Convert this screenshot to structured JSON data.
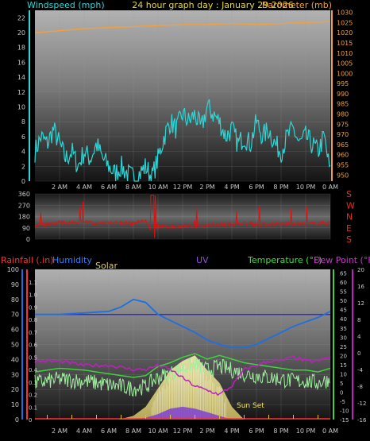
{
  "header": {
    "left": "Windspeed (mph)",
    "center": "24 hour graph day : January 29 2026",
    "right": "Barometer (mb)"
  },
  "colors": {
    "wind": "#2ed6d6",
    "baro": "#f0a040",
    "dir": "#e01010",
    "humidity": "#1f6fe0",
    "temp": "#9ef09e",
    "temp_line": "#40d040",
    "dew": "#c020c0",
    "solar": "#e8e090",
    "uv": "#8040d0",
    "rain": "#ff3030",
    "hline": "#3030c0",
    "axis_text": "#c8c8c8",
    "dir_labels": "#e03020"
  },
  "bottom_headers": {
    "rain": "Rainfall (.in)",
    "humidity": "Humidity",
    "solar": "Solar",
    "uv": "UV",
    "temp": "Temperature (°F)",
    "dew": "Dew Point (°F)"
  },
  "annotation": "Sun Set",
  "x_ticks": [
    "2 AM",
    "4 AM",
    "6 AM",
    "8 AM",
    "10 AM",
    "12 PM",
    "2 PM",
    "4 PM",
    "6 PM",
    "8 PM",
    "10 PM",
    "0 AM"
  ],
  "chart_data": [
    {
      "type": "line",
      "title": "24 hour graph day : January 29 2026",
      "x_hours_range": [
        0,
        24
      ],
      "series": [
        {
          "name": "Windspeed (mph)",
          "axis": "left",
          "ylim": [
            0,
            23
          ],
          "ticks": [
            0,
            2,
            4,
            6,
            8,
            10,
            12,
            14,
            16,
            18,
            20,
            22
          ],
          "x": [
            0,
            0.5,
            1,
            1.5,
            2,
            2.5,
            3,
            3.5,
            4,
            4.5,
            5,
            5.5,
            6,
            6.5,
            7,
            7.5,
            8,
            8.5,
            9,
            9.5,
            10,
            10.5,
            11,
            11.5,
            12,
            12.5,
            13,
            13.5,
            14,
            14.5,
            15,
            15.5,
            16,
            16.5,
            17,
            17.5,
            18,
            18.5,
            19,
            19.5,
            20,
            20.5,
            21,
            21.5,
            22,
            22.5,
            23,
            23.5,
            24
          ],
          "values": [
            4,
            6,
            5,
            7,
            5,
            3,
            4,
            2,
            4,
            3,
            5,
            3,
            2,
            1,
            2,
            1,
            0.5,
            1,
            2,
            0.5,
            3,
            6,
            8,
            7,
            9,
            8,
            9,
            7,
            10,
            9,
            8,
            6,
            7,
            5,
            6,
            5,
            8,
            6,
            7,
            5,
            4,
            6,
            7,
            5,
            6,
            5,
            4,
            6,
            1
          ]
        },
        {
          "name": "Barometer (mb)",
          "axis": "right",
          "ylim": [
            947,
            1031
          ],
          "ticks": [
            950,
            955,
            960,
            965,
            970,
            975,
            980,
            985,
            990,
            995,
            1000,
            1005,
            1010,
            1015,
            1020,
            1025,
            1030
          ],
          "x": [
            0,
            2,
            4,
            6,
            8,
            10,
            12,
            14,
            16,
            18,
            20,
            22,
            24
          ],
          "values": [
            1020,
            1021,
            1022,
            1022.5,
            1023,
            1023.5,
            1024,
            1024,
            1024.5,
            1024,
            1024.5,
            1025,
            1025.5
          ]
        }
      ]
    },
    {
      "type": "line",
      "title": "",
      "series": [
        {
          "name": "",
          "ylim": [
            0,
            360
          ],
          "ticks": [
            0,
            90,
            180,
            270,
            360
          ],
          "labels_right": [
            "S",
            "E",
            "N",
            "W",
            "S"
          ],
          "x": [
            0,
            1,
            2,
            3,
            4,
            5,
            6,
            7,
            8,
            9,
            9.5,
            10,
            11,
            12,
            13,
            14,
            15,
            16,
            17,
            18,
            19,
            20,
            21,
            22,
            23,
            24
          ],
          "values": [
            110,
            120,
            135,
            130,
            140,
            120,
            135,
            130,
            125,
            150,
            40,
            100,
            100,
            105,
            100,
            110,
            115,
            120,
            125,
            115,
            120,
            120,
            125,
            120,
            125,
            130
          ]
        }
      ]
    },
    {
      "type": "line",
      "title": "",
      "series": [
        {
          "name": "Humidity",
          "axis": "humidity",
          "ylim": [
            0,
            100
          ],
          "ticks": [
            0,
            10,
            20,
            30,
            40,
            50,
            60,
            70,
            80,
            90,
            100
          ],
          "x": [
            0,
            2,
            4,
            6,
            7,
            8,
            9,
            10,
            11,
            12,
            13,
            14,
            15,
            16,
            17,
            18,
            19,
            20,
            21,
            22,
            23,
            24
          ],
          "values": [
            70,
            70,
            71,
            72,
            75,
            80,
            78,
            70,
            66,
            62,
            58,
            53,
            50,
            48,
            48,
            50,
            54,
            58,
            62,
            65,
            68,
            72
          ]
        },
        {
          "name": "Temperature (°F)",
          "axis": "temp",
          "ylim": [
            -15,
            67
          ],
          "ticks": [
            -15,
            -10,
            -5,
            0,
            5,
            10,
            15,
            20,
            25,
            30,
            35,
            40,
            45,
            50,
            55,
            60,
            65
          ],
          "x": [
            0,
            2,
            4,
            6,
            8,
            9,
            10,
            11,
            12,
            13,
            14,
            15,
            16,
            17,
            18,
            19,
            20,
            21,
            22,
            23,
            24
          ],
          "values": [
            5,
            7,
            6,
            4,
            2,
            3,
            8,
            10,
            13,
            15,
            12,
            14,
            12,
            10,
            9,
            8,
            7,
            6,
            6,
            5,
            7
          ]
        },
        {
          "name": "Dew Point (°F)",
          "axis": "dew",
          "ylim": [
            -16,
            20
          ],
          "ticks": [
            -16,
            -14,
            -12,
            -10,
            -8,
            -6,
            -4,
            -2,
            0,
            2,
            4,
            6,
            8,
            10,
            12,
            14,
            16,
            18,
            20
          ],
          "x": [
            0,
            2,
            4,
            6,
            8,
            9,
            10,
            11,
            12,
            13,
            14,
            15,
            16,
            17,
            18,
            19,
            20,
            21,
            22,
            23,
            24
          ],
          "values": [
            -2,
            -2,
            -3,
            -3,
            -4,
            -4,
            -3,
            -4,
            -6,
            -8,
            -9,
            -10,
            -8,
            -4,
            -3,
            -2,
            -2,
            -1,
            -2,
            -2,
            -1
          ]
        },
        {
          "name": "Solar",
          "axis": "temp",
          "x": [
            6.8,
            8,
            9,
            10,
            11,
            12,
            13,
            14,
            15,
            16,
            17
          ],
          "values": [
            -15,
            -13,
            -8,
            2,
            12,
            17,
            20,
            12,
            5,
            -8,
            -15
          ]
        },
        {
          "name": "UV",
          "axis": "temp",
          "x": [
            8,
            9,
            10,
            11,
            12,
            13,
            14,
            15,
            16
          ],
          "values": [
            -15,
            -14,
            -12,
            -9,
            -8,
            -9,
            -11,
            -13,
            -15
          ]
        },
        {
          "name": "Rainfall (.in)",
          "axis": "rain",
          "ylim": [
            0,
            1.2
          ],
          "ticks": [
            0,
            0.1,
            0.2,
            0.3,
            0.4,
            0.5,
            0.6,
            0.7,
            0.8,
            0.9,
            1,
            1.1
          ],
          "x": [
            0,
            24
          ],
          "values": [
            0,
            0
          ]
        }
      ]
    }
  ]
}
